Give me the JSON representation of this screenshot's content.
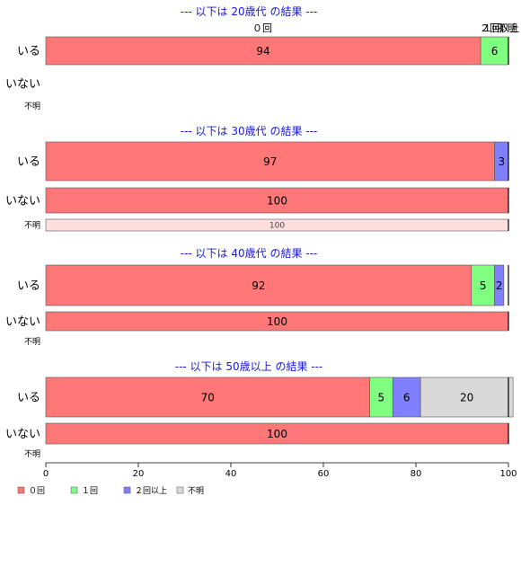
{
  "chart_data": {
    "type": "bar",
    "orientation": "horizontal",
    "stacked": true,
    "xlim": [
      0,
      100
    ],
    "xticks": [
      0,
      20,
      40,
      60,
      80,
      100
    ],
    "legend_position": "bottom-left",
    "categories_legend": [
      "０回",
      "１回",
      "２回以上",
      "不明"
    ],
    "colors": {
      "０回": "#ff7777",
      "１回": "#80ff80",
      "２回以上": "#7f7fff",
      "不明": "#d9d9d9",
      "faded": "#ffdede",
      "title": "#1a1ad4"
    },
    "top_segment_labels": [
      "０回",
      "１回",
      "２回以上",
      "不明"
    ],
    "panels": [
      {
        "title": "--- 以下は 20歳代 の結果 ---",
        "rows": [
          {
            "label": "いる",
            "segments": [
              {
                "series": "０回",
                "value": 94,
                "label": "94"
              },
              {
                "series": "１回",
                "value": 6,
                "label": "6"
              }
            ]
          },
          {
            "label": "いない",
            "segments": []
          },
          {
            "label": "不明",
            "segments": []
          }
        ]
      },
      {
        "title": "--- 以下は 30歳代 の結果 ---",
        "rows": [
          {
            "label": "いる",
            "segments": [
              {
                "series": "０回",
                "value": 97,
                "label": "97"
              },
              {
                "series": "２回以上",
                "value": 3,
                "label": "3"
              }
            ]
          },
          {
            "label": "いない",
            "segments": [
              {
                "series": "０回",
                "value": 100,
                "label": "100"
              }
            ]
          },
          {
            "label": "不明",
            "segments": [
              {
                "series": "０回",
                "value": 100,
                "label": "100",
                "faded": true
              }
            ]
          }
        ]
      },
      {
        "title": "--- 以下は 40歳代 の結果 ---",
        "rows": [
          {
            "label": "いる",
            "segments": [
              {
                "series": "０回",
                "value": 92,
                "label": "92"
              },
              {
                "series": "１回",
                "value": 5,
                "label": "5"
              },
              {
                "series": "２回以上",
                "value": 2,
                "label": "2"
              }
            ]
          },
          {
            "label": "いない",
            "segments": [
              {
                "series": "０回",
                "value": 100,
                "label": "100"
              }
            ]
          },
          {
            "label": "不明",
            "segments": []
          }
        ]
      },
      {
        "title": "--- 以下は 50歳以上 の結果 ---",
        "rows": [
          {
            "label": "いる",
            "segments": [
              {
                "series": "０回",
                "value": 70,
                "label": "70"
              },
              {
                "series": "１回",
                "value": 5,
                "label": "5"
              },
              {
                "series": "２回以上",
                "value": 6,
                "label": "6"
              },
              {
                "series": "不明",
                "value": 20,
                "label": "20"
              }
            ]
          },
          {
            "label": "いない",
            "segments": [
              {
                "series": "０回",
                "value": 100,
                "label": "100"
              }
            ]
          },
          {
            "label": "不明",
            "segments": []
          }
        ]
      }
    ]
  }
}
